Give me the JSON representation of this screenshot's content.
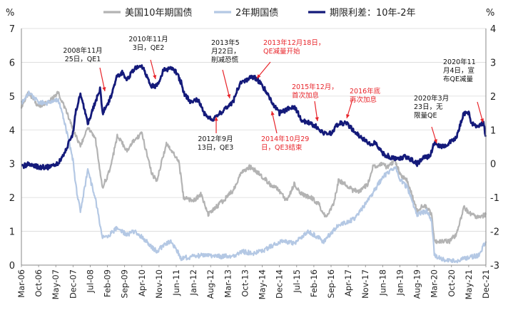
{
  "chart_data": {
    "type": "line",
    "left_axis_unit": "%",
    "right_axis_unit": "%",
    "left_ylim": [
      0,
      7
    ],
    "right_ylim": [
      -3,
      4
    ],
    "left_ticks": [
      "0",
      "1",
      "2",
      "3",
      "4",
      "5",
      "6",
      "7"
    ],
    "right_ticks": [
      "-3",
      "-2",
      "-1",
      "0",
      "1",
      "2",
      "3",
      "4"
    ],
    "x_tick_labels": [
      "Mar-06",
      "Oct-06",
      "May-07",
      "Dec-07",
      "Jul-08",
      "Feb-09",
      "Sep-09",
      "Apr-10",
      "Nov-10",
      "Jun-11",
      "Jan-12",
      "Aug-12",
      "Mar-13",
      "Oct-13",
      "May-14",
      "Dec-14",
      "Jul-15",
      "Feb-16",
      "Sep-16",
      "Apr-17",
      "Nov-17",
      "Jun-18",
      "Jan-19",
      "Aug-19",
      "Mar-20",
      "Oct-20",
      "May-21",
      "Dec-21"
    ],
    "legend": [
      {
        "label": "美国10年期国债",
        "color": "#b3b3b3"
      },
      {
        "label": "2年期国债",
        "color": "#b4c8e4"
      },
      {
        "label": "期限利差：10年-2年",
        "color": "#141a7a"
      }
    ],
    "series": [
      {
        "name": "美国10年期国债",
        "axis": "left",
        "color": "#b3b3b3",
        "x": [
          "2006-03",
          "2006-06",
          "2006-10",
          "2007-02",
          "2007-06",
          "2007-09",
          "2007-12",
          "2008-03",
          "2008-06",
          "2008-09",
          "2008-12",
          "2009-03",
          "2009-06",
          "2009-10",
          "2010-01",
          "2010-04",
          "2010-08",
          "2010-10",
          "2011-02",
          "2011-04",
          "2011-07",
          "2011-09",
          "2012-01",
          "2012-04",
          "2012-07",
          "2012-10",
          "2013-01",
          "2013-05",
          "2013-09",
          "2013-12",
          "2014-04",
          "2014-08",
          "2014-12",
          "2015-03",
          "2015-06",
          "2015-09",
          "2016-01",
          "2016-04",
          "2016-07",
          "2016-10",
          "2016-12",
          "2017-03",
          "2017-06",
          "2017-09",
          "2017-12",
          "2018-02",
          "2018-05",
          "2018-08",
          "2018-11",
          "2019-01",
          "2019-04",
          "2019-08",
          "2019-11",
          "2020-02",
          "2020-03",
          "2020-06",
          "2020-09",
          "2020-12",
          "2021-03",
          "2021-06",
          "2021-09",
          "2021-12"
        ],
        "values": [
          4.7,
          5.1,
          4.7,
          4.8,
          5.1,
          4.6,
          4.0,
          3.5,
          4.1,
          3.8,
          2.3,
          2.8,
          3.8,
          3.4,
          3.7,
          3.9,
          2.7,
          2.5,
          3.6,
          3.4,
          3.1,
          2.0,
          1.9,
          2.1,
          1.5,
          1.7,
          1.9,
          2.2,
          2.8,
          2.9,
          2.7,
          2.4,
          2.2,
          1.9,
          2.4,
          2.1,
          2.0,
          1.8,
          1.4,
          1.8,
          2.5,
          2.4,
          2.2,
          2.2,
          2.4,
          2.9,
          3.0,
          2.9,
          3.1,
          2.7,
          2.5,
          1.6,
          1.8,
          1.5,
          0.7,
          0.7,
          0.7,
          0.9,
          1.7,
          1.5,
          1.4,
          1.5
        ]
      },
      {
        "name": "2年期国债",
        "axis": "left",
        "color": "#b4c8e4",
        "x": [
          "2006-03",
          "2006-06",
          "2006-10",
          "2007-02",
          "2007-06",
          "2007-09",
          "2007-12",
          "2008-01",
          "2008-03",
          "2008-06",
          "2008-09",
          "2008-12",
          "2009-03",
          "2009-06",
          "2009-10",
          "2010-01",
          "2010-06",
          "2010-10",
          "2011-01",
          "2011-04",
          "2011-08",
          "2012-01",
          "2012-06",
          "2013-01",
          "2013-06",
          "2013-09",
          "2014-01",
          "2014-06",
          "2014-12",
          "2015-06",
          "2015-12",
          "2016-06",
          "2016-12",
          "2017-06",
          "2017-12",
          "2018-06",
          "2018-11",
          "2019-01",
          "2019-04",
          "2019-08",
          "2019-12",
          "2020-02",
          "2020-03",
          "2020-06",
          "2020-12",
          "2021-06",
          "2021-09",
          "2021-12"
        ],
        "values": [
          4.8,
          5.1,
          4.8,
          4.8,
          4.9,
          4.1,
          3.1,
          2.4,
          1.6,
          2.8,
          2.0,
          0.8,
          0.9,
          1.1,
          0.9,
          1.0,
          0.7,
          0.4,
          0.6,
          0.7,
          0.2,
          0.25,
          0.3,
          0.25,
          0.3,
          0.4,
          0.35,
          0.45,
          0.7,
          0.65,
          1.0,
          0.7,
          1.2,
          1.35,
          1.9,
          2.6,
          2.9,
          2.55,
          2.3,
          1.5,
          1.6,
          1.3,
          0.3,
          0.16,
          0.12,
          0.25,
          0.28,
          0.7
        ]
      },
      {
        "name": "期限利差：10年-2年",
        "axis": "right",
        "color": "#141a7a",
        "x": [
          "2006-03",
          "2006-06",
          "2006-10",
          "2007-02",
          "2007-06",
          "2007-09",
          "2007-12",
          "2008-01",
          "2008-03",
          "2008-06",
          "2008-09",
          "2008-11",
          "2008-12",
          "2009-03",
          "2009-06",
          "2009-08",
          "2009-10",
          "2010-01",
          "2010-04",
          "2010-08",
          "2010-10",
          "2011-01",
          "2011-04",
          "2011-06",
          "2011-08",
          "2011-09",
          "2011-12",
          "2012-03",
          "2012-06",
          "2012-09",
          "2012-12",
          "2013-03",
          "2013-05",
          "2013-08",
          "2013-11",
          "2013-12",
          "2014-03",
          "2014-06",
          "2014-09",
          "2014-10",
          "2014-12",
          "2015-03",
          "2015-06",
          "2015-09",
          "2015-12",
          "2016-03",
          "2016-06",
          "2016-09",
          "2016-12",
          "2017-03",
          "2017-06",
          "2017-09",
          "2017-12",
          "2018-03",
          "2018-06",
          "2018-09",
          "2018-12",
          "2019-03",
          "2019-06",
          "2019-08",
          "2019-11",
          "2020-01",
          "2020-03",
          "2020-06",
          "2020-09",
          "2020-12",
          "2021-03",
          "2021-05",
          "2021-06",
          "2021-09",
          "2021-11",
          "2021-12"
        ],
        "values": [
          -0.1,
          0.0,
          -0.1,
          -0.1,
          0.0,
          0.4,
          0.9,
          1.5,
          2.1,
          1.2,
          1.8,
          2.2,
          1.5,
          1.9,
          2.6,
          2.7,
          2.5,
          2.8,
          2.9,
          2.3,
          2.3,
          2.8,
          2.8,
          2.7,
          2.4,
          2.1,
          1.8,
          1.9,
          1.4,
          1.3,
          1.5,
          1.7,
          1.8,
          2.4,
          2.5,
          2.6,
          2.5,
          2.2,
          1.8,
          1.7,
          1.5,
          1.6,
          1.7,
          1.3,
          1.2,
          1.1,
          0.9,
          0.9,
          1.2,
          1.2,
          1.0,
          0.8,
          0.6,
          0.6,
          0.3,
          0.2,
          0.15,
          0.2,
          0.1,
          0.0,
          0.2,
          0.2,
          0.6,
          0.5,
          0.6,
          0.8,
          1.5,
          1.5,
          1.2,
          1.1,
          1.2,
          0.8
        ]
      }
    ],
    "annotations": [
      {
        "lines": [
          "2008年11月",
          "25日，QE1"
        ],
        "color": "black"
      },
      {
        "lines": [
          "2010年11月",
          "3日，QE2"
        ],
        "color": "black"
      },
      {
        "lines": [
          "2013年5",
          "月22日，",
          "削减恐慌"
        ],
        "color": "black"
      },
      {
        "lines": [
          "2013年12月18日，",
          "QE减量开始"
        ],
        "color": "red"
      },
      {
        "lines": [
          "2012年9月",
          "13日，QE3"
        ],
        "color": "black"
      },
      {
        "lines": [
          "2014年10月29",
          "日，QE3结束"
        ],
        "color": "red"
      },
      {
        "lines": [
          "2015年12月，",
          "首次加息"
        ],
        "color": "red"
      },
      {
        "lines": [
          "2016年底",
          "再次加息"
        ],
        "color": "red"
      },
      {
        "lines": [
          "2020年3月",
          "23日，无",
          "限量QE"
        ],
        "color": "black"
      },
      {
        "lines": [
          "2020年11",
          "月4日，宣",
          "布QE减量"
        ],
        "color": "black"
      }
    ]
  }
}
